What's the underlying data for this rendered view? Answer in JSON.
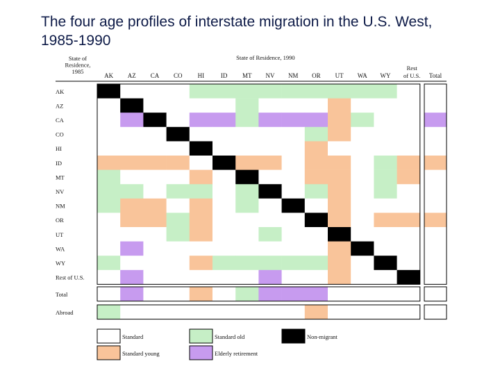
{
  "slide": {
    "title": "The four age profiles of interstate migration in the U.S. West, 1985-1990"
  },
  "colors": {
    "standard": "#ffffff",
    "standard_old": "#c6efc6",
    "non_migrant": "#000000",
    "standard_young": "#f9c49a",
    "elderly_retirement": "#c79bef"
  },
  "chart_data": {
    "type": "table",
    "title": "The four age profiles of interstate migration in the U.S. West, 1985-1990",
    "column_header_title": "State of Residence, 1990",
    "row_header_title": [
      "State of",
      "Residence,",
      "1985"
    ],
    "columns": [
      "AK",
      "AZ",
      "CA",
      "CO",
      "HI",
      "ID",
      "MT",
      "NV",
      "NM",
      "OR",
      "UT",
      "WA",
      "WY",
      "Rest of U.S."
    ],
    "column_labels": [
      "AK",
      "AZ",
      "CA",
      "CO",
      "HI",
      "ID",
      "MT",
      "NV",
      "NM",
      "OR",
      "UT",
      "WA",
      "WY",
      "Rest|of U.S."
    ],
    "total_column_label": "Total",
    "rows": [
      "AK",
      "AZ",
      "CA",
      "CO",
      "HI",
      "ID",
      "MT",
      "NV",
      "NM",
      "OR",
      "UT",
      "WA",
      "WY",
      "Rest of U.S."
    ],
    "legend_codes": {
      "S": "standard",
      "O": "standard_old",
      "N": "non_migrant",
      "Y": "standard_young",
      "E": "elderly_retirement"
    },
    "matrix": [
      [
        "N",
        "S",
        "S",
        "S",
        "O",
        "O",
        "O",
        "O",
        "O",
        "O",
        "O",
        "O",
        "O",
        "S"
      ],
      [
        "S",
        "N",
        "S",
        "S",
        "S",
        "S",
        "O",
        "S",
        "S",
        "S",
        "Y",
        "S",
        "S",
        "S"
      ],
      [
        "S",
        "E",
        "N",
        "S",
        "E",
        "E",
        "O",
        "E",
        "E",
        "E",
        "Y",
        "O",
        "S",
        "S"
      ],
      [
        "S",
        "S",
        "S",
        "N",
        "S",
        "S",
        "S",
        "S",
        "S",
        "O",
        "Y",
        "S",
        "S",
        "S"
      ],
      [
        "S",
        "S",
        "S",
        "S",
        "N",
        "S",
        "S",
        "S",
        "S",
        "Y",
        "S",
        "S",
        "S",
        "S"
      ],
      [
        "Y",
        "Y",
        "Y",
        "Y",
        "S",
        "N",
        "Y",
        "Y",
        "S",
        "Y",
        "Y",
        "S",
        "O",
        "Y"
      ],
      [
        "O",
        "S",
        "S",
        "S",
        "Y",
        "S",
        "N",
        "S",
        "S",
        "Y",
        "Y",
        "S",
        "O",
        "Y"
      ],
      [
        "O",
        "O",
        "S",
        "O",
        "O",
        "S",
        "O",
        "N",
        "S",
        "O",
        "Y",
        "S",
        "O",
        "S"
      ],
      [
        "O",
        "Y",
        "Y",
        "S",
        "Y",
        "S",
        "O",
        "S",
        "N",
        "S",
        "Y",
        "S",
        "S",
        "S"
      ],
      [
        "S",
        "Y",
        "Y",
        "O",
        "Y",
        "S",
        "S",
        "S",
        "S",
        "N",
        "Y",
        "S",
        "Y",
        "Y"
      ],
      [
        "S",
        "S",
        "S",
        "O",
        "Y",
        "S",
        "S",
        "O",
        "S",
        "S",
        "N",
        "S",
        "S",
        "S"
      ],
      [
        "S",
        "E",
        "S",
        "S",
        "S",
        "S",
        "S",
        "S",
        "S",
        "S",
        "Y",
        "N",
        "S",
        "S"
      ],
      [
        "O",
        "S",
        "S",
        "S",
        "Y",
        "O",
        "O",
        "O",
        "O",
        "O",
        "Y",
        "S",
        "N",
        "S"
      ],
      [
        "S",
        "E",
        "S",
        "S",
        "S",
        "S",
        "S",
        "E",
        "S",
        "S",
        "Y",
        "S",
        "S",
        "N"
      ]
    ],
    "total_column": [
      "S",
      "S",
      "E",
      "S",
      "S",
      "Y",
      "S",
      "S",
      "S",
      "Y",
      "S",
      "S",
      "S",
      "S"
    ],
    "extra_rows": [
      {
        "label": "Total",
        "cells": [
          "S",
          "E",
          "S",
          "S",
          "Y",
          "S",
          "O",
          "E",
          "E",
          "E",
          "S",
          "S",
          "S",
          "S"
        ],
        "total": "S"
      },
      {
        "label": "Abroad",
        "cells": [
          "O",
          "S",
          "S",
          "S",
          "S",
          "S",
          "S",
          "S",
          "S",
          "Y",
          "S",
          "S",
          "S",
          "S"
        ],
        "total": "S"
      }
    ],
    "legend": [
      {
        "code": "S",
        "label": "Standard"
      },
      {
        "code": "O",
        "label": "Standard old"
      },
      {
        "code": "N",
        "label": "Non-migrant"
      },
      {
        "code": "Y",
        "label": "Standard young"
      },
      {
        "code": "E",
        "label": "Elderly retirement"
      }
    ]
  }
}
